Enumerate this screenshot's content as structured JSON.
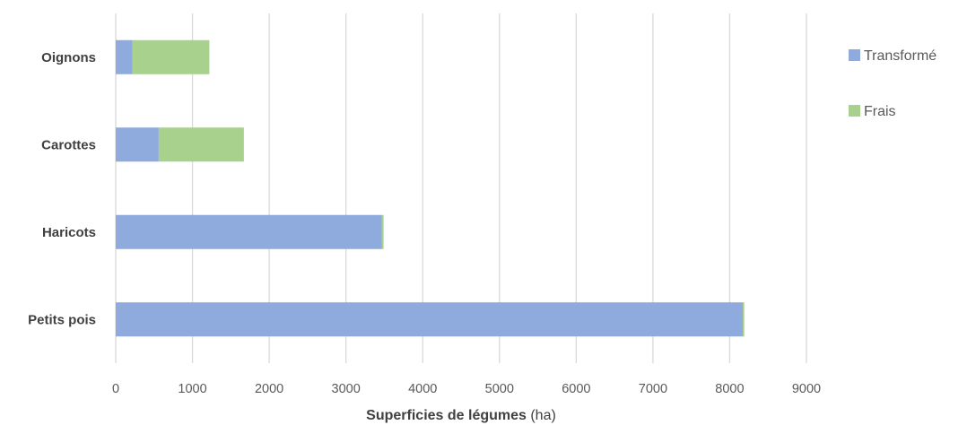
{
  "chart_data": {
    "type": "bar",
    "orientation": "horizontal",
    "stacked": true,
    "categories": [
      "Petits pois",
      "Haricots",
      "Carottes",
      "Oignons"
    ],
    "series": [
      {
        "name": "Transformé",
        "color": "#8faadc",
        "values": [
          8170,
          3470,
          560,
          220
        ]
      },
      {
        "name": "Frais",
        "color": "#a9d18e",
        "values": [
          20,
          20,
          1110,
          1000
        ]
      }
    ],
    "xlim": [
      0,
      9000
    ],
    "xticks": [
      0,
      1000,
      2000,
      3000,
      4000,
      5000,
      6000,
      7000,
      8000,
      9000
    ],
    "xlabel": {
      "bold": "Superficies de légumes",
      "normal": " (ha)"
    },
    "grid": "vertical",
    "legend": "right"
  }
}
